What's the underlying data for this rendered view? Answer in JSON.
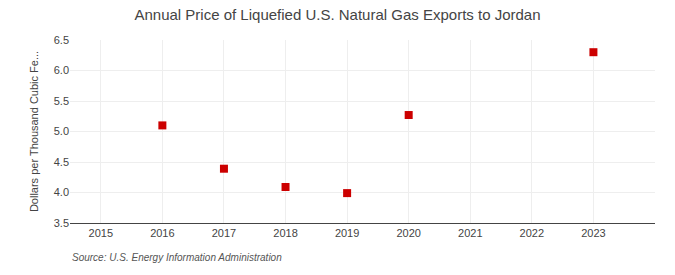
{
  "chart_data": {
    "type": "scatter",
    "title": "Annual Price of Liquefied U.S. Natural Gas Exports to Jordan",
    "y_label": "Dollars per Thousand Cubic Fe...",
    "source": "Source: U.S. Energy Information Administration",
    "x": [
      2016,
      2017,
      2018,
      2019,
      2020,
      2023
    ],
    "values": [
      5.1,
      4.39,
      4.09,
      3.99,
      5.27,
      6.3
    ],
    "color": "#cc0000",
    "marker": "square",
    "xlim": [
      2014.5,
      2024.0
    ],
    "ylim": [
      3.5,
      6.5
    ],
    "xticks": [
      2015,
      2016,
      2017,
      2018,
      2019,
      2020,
      2021,
      2022,
      2023
    ],
    "yticks": [
      3.5,
      {
        "value": 4.0,
        "label": "4.0"
      },
      4.5,
      {
        "value": 5.0,
        "label": "5.0"
      },
      5.5,
      {
        "value": 6.0,
        "label": "6.0"
      },
      6.5
    ],
    "grid": true
  }
}
